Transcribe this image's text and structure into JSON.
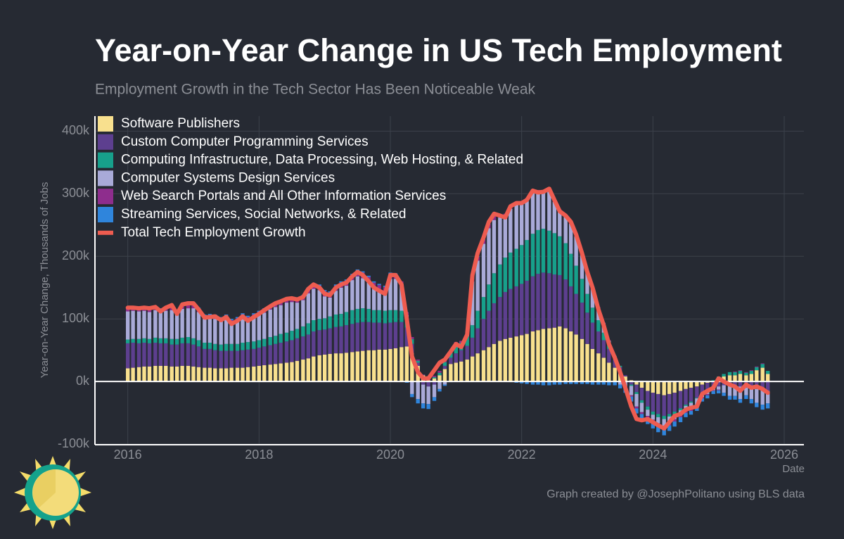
{
  "chart_data": {
    "type": "bar",
    "stacked": true,
    "title": "Year-on-Year Change in US Tech Employment",
    "subtitle": "Employment Growth in the Tech Sector Has Been Noticeable Weak",
    "y_label": "Year-on-Year Change, Thousands of Jobs",
    "x_label": "Date",
    "credit": "Graph created by @JosephPolitano using BLS data",
    "legend": "top-left",
    "grid": true,
    "xlim": [
      2015.5,
      2026.3
    ],
    "xticks": [
      2016,
      2018,
      2020,
      2022,
      2024,
      2026
    ],
    "ylim": [
      -101,
      424
    ],
    "yticks": [
      {
        "value": -100,
        "label": "-100k"
      },
      {
        "value": 0,
        "label": "0k"
      },
      {
        "value": 100,
        "label": "100k"
      },
      {
        "value": 200,
        "label": "200k"
      },
      {
        "value": 300,
        "label": "300k"
      },
      {
        "value": 400,
        "label": "400k"
      }
    ],
    "x": [
      2016,
      2016.08,
      2016.17,
      2016.25,
      2016.33,
      2016.42,
      2016.5,
      2016.58,
      2016.67,
      2016.75,
      2016.83,
      2016.92,
      2017,
      2017.08,
      2017.17,
      2017.25,
      2017.33,
      2017.42,
      2017.5,
      2017.58,
      2017.67,
      2017.75,
      2017.83,
      2017.92,
      2018,
      2018.08,
      2018.17,
      2018.25,
      2018.33,
      2018.42,
      2018.5,
      2018.58,
      2018.67,
      2018.75,
      2018.83,
      2018.92,
      2019,
      2019.08,
      2019.17,
      2019.25,
      2019.33,
      2019.42,
      2019.5,
      2019.58,
      2019.67,
      2019.75,
      2019.83,
      2019.92,
      2020,
      2020.08,
      2020.17,
      2020.25,
      2020.33,
      2020.42,
      2020.5,
      2020.58,
      2020.67,
      2020.75,
      2020.83,
      2020.92,
      2021,
      2021.08,
      2021.17,
      2021.25,
      2021.33,
      2021.42,
      2021.5,
      2021.58,
      2021.67,
      2021.75,
      2021.83,
      2021.92,
      2022,
      2022.08,
      2022.17,
      2022.25,
      2022.33,
      2022.42,
      2022.5,
      2022.58,
      2022.67,
      2022.75,
      2022.83,
      2022.92,
      2023,
      2023.08,
      2023.17,
      2023.25,
      2023.33,
      2023.42,
      2023.5,
      2023.58,
      2023.67,
      2023.75,
      2023.83,
      2023.92,
      2024,
      2024.08,
      2024.17,
      2024.25,
      2024.33,
      2024.42,
      2024.5,
      2024.58,
      2024.67,
      2024.75,
      2024.83,
      2024.92,
      2025,
      2025.08,
      2025.17,
      2025.25,
      2025.33,
      2025.42,
      2025.5,
      2025.58,
      2025.67,
      2025.75
    ],
    "series": [
      {
        "name": "Software Publishers",
        "type": "bar",
        "color": "#f8e08e",
        "values": [
          21,
          22,
          23,
          24,
          24,
          25,
          25,
          25,
          24,
          24,
          25,
          25,
          24,
          23,
          22,
          22,
          21,
          21,
          21,
          22,
          22,
          22,
          23,
          24,
          25,
          26,
          27,
          28,
          29,
          30,
          31,
          33,
          35,
          37,
          40,
          42,
          43,
          44,
          45,
          45,
          46,
          47,
          48,
          49,
          50,
          50,
          51,
          51,
          52,
          53,
          55,
          56,
          45,
          25,
          10,
          2,
          5,
          10,
          20,
          28,
          30,
          32,
          35,
          40,
          45,
          50,
          55,
          60,
          65,
          68,
          70,
          72,
          74,
          76,
          80,
          82,
          84,
          85,
          86,
          88,
          85,
          80,
          75,
          68,
          60,
          52,
          45,
          38,
          30,
          22,
          15,
          8,
          2,
          -5,
          -10,
          -15,
          -18,
          -20,
          -22,
          -20,
          -18,
          -15,
          -12,
          -10,
          -8,
          -5,
          -2,
          0,
          5,
          8,
          10,
          10,
          12,
          10,
          12,
          18,
          22,
          12
        ]
      },
      {
        "name": "Custom Computer Programming Services",
        "type": "bar",
        "color": "#5d3f8f",
        "values": [
          40,
          40,
          38,
          38,
          37,
          37,
          36,
          36,
          35,
          35,
          36,
          36,
          35,
          33,
          30,
          30,
          29,
          28,
          28,
          27,
          27,
          28,
          28,
          28,
          29,
          30,
          31,
          32,
          33,
          34,
          35,
          36,
          37,
          38,
          40,
          40,
          40,
          41,
          42,
          43,
          44,
          45,
          46,
          46,
          45,
          44,
          43,
          42,
          42,
          42,
          40,
          30,
          15,
          5,
          -5,
          -8,
          -5,
          0,
          5,
          10,
          15,
          18,
          22,
          30,
          40,
          50,
          58,
          65,
          70,
          75,
          78,
          80,
          82,
          85,
          88,
          90,
          90,
          88,
          85,
          82,
          78,
          72,
          65,
          58,
          50,
          42,
          35,
          28,
          22,
          15,
          8,
          2,
          -5,
          -12,
          -20,
          -25,
          -30,
          -32,
          -33,
          -32,
          -30,
          -28,
          -25,
          -22,
          -18,
          -15,
          -12,
          -10,
          -8,
          -6,
          -5,
          -6,
          -8,
          -10,
          -10,
          -12,
          -12,
          -15
        ]
      },
      {
        "name": "Computing Infrastructure, Data Processing, Web Hosting, & Related",
        "type": "bar",
        "color": "#17a08b",
        "values": [
          6,
          6,
          7,
          7,
          7,
          8,
          8,
          8,
          9,
          9,
          9,
          10,
          10,
          10,
          10,
          10,
          10,
          10,
          11,
          11,
          11,
          12,
          12,
          12,
          12,
          12,
          13,
          13,
          14,
          14,
          15,
          15,
          16,
          18,
          18,
          18,
          18,
          19,
          20,
          20,
          21,
          22,
          22,
          22,
          21,
          20,
          20,
          20,
          20,
          19,
          18,
          15,
          8,
          3,
          0,
          0,
          2,
          4,
          6,
          8,
          10,
          12,
          15,
          20,
          28,
          35,
          42,
          48,
          52,
          55,
          58,
          60,
          62,
          65,
          68,
          70,
          70,
          68,
          66,
          62,
          58,
          52,
          45,
          38,
          30,
          24,
          18,
          12,
          8,
          4,
          2,
          0,
          -2,
          -3,
          -4,
          -5,
          -5,
          -5,
          -5,
          -4,
          -4,
          -3,
          -2,
          -2,
          -1,
          0,
          1,
          2,
          3,
          4,
          5,
          5,
          5,
          4,
          5,
          5,
          6,
          5
        ]
      },
      {
        "name": "Computer Systems Design Services",
        "type": "bar",
        "color": "#a9aad8",
        "values": [
          45,
          45,
          44,
          44,
          43,
          44,
          42,
          44,
          46,
          40,
          46,
          46,
          48,
          45,
          38,
          39,
          40,
          37,
          40,
          33,
          36,
          40,
          35,
          38,
          40,
          42,
          44,
          46,
          46,
          48,
          46,
          42,
          42,
          48,
          50,
          46,
          35,
          30,
          38,
          42,
          42,
          48,
          52,
          48,
          42,
          36,
          32,
          30,
          50,
          50,
          40,
          5,
          -20,
          -28,
          -30,
          -28,
          -20,
          -12,
          -5,
          0,
          5,
          0,
          5,
          70,
          80,
          85,
          90,
          85,
          75,
          65,
          70,
          70,
          65,
          62,
          65,
          60,
          58,
          62,
          50,
          40,
          42,
          48,
          47,
          40,
          35,
          32,
          20,
          15,
          5,
          0,
          -5,
          -10,
          -15,
          -20,
          -15,
          -10,
          -8,
          -10,
          -12,
          -10,
          -8,
          -8,
          -8,
          -10,
          -12,
          -5,
          -6,
          -4,
          -5,
          -12,
          -18,
          -17,
          -20,
          -12,
          -18,
          -22,
          -25,
          -20
        ]
      },
      {
        "name": "Web Search Portals and All Other Information Services",
        "type": "bar",
        "color": "#8e2d8d",
        "values": [
          4,
          4,
          4,
          4,
          4,
          4,
          4,
          4,
          5,
          5,
          5,
          5,
          5,
          5,
          5,
          5,
          5,
          5,
          5,
          5,
          5,
          5,
          5,
          5,
          5,
          5,
          5,
          5,
          5,
          6,
          6,
          6,
          6,
          7,
          7,
          7,
          8,
          8,
          8,
          8,
          8,
          8,
          9,
          9,
          9,
          8,
          8,
          8,
          8,
          8,
          7,
          5,
          3,
          2,
          1,
          1,
          2,
          3,
          3,
          3,
          3,
          3,
          4,
          5,
          6,
          6,
          6,
          6,
          5,
          5,
          5,
          5,
          5,
          5,
          5,
          4,
          4,
          4,
          3,
          3,
          3,
          3,
          2,
          2,
          2,
          2,
          1,
          1,
          1,
          0,
          0,
          -1,
          -2,
          -3,
          -3,
          -3,
          -4,
          -4,
          -4,
          -4,
          -4,
          -3,
          -3,
          -3,
          -2,
          -2,
          -2,
          -1,
          -1,
          0,
          0,
          1,
          1,
          1,
          1,
          1,
          1,
          0
        ]
      },
      {
        "name": "Streaming Services, Social Networks, & Related",
        "type": "bar",
        "color": "#2f85dc",
        "values": [
          2,
          2,
          2,
          2,
          2,
          2,
          2,
          2,
          2,
          2,
          2,
          2,
          2,
          2,
          2,
          2,
          2,
          2,
          2,
          2,
          2,
          2,
          2,
          2,
          2,
          2,
          2,
          2,
          2,
          2,
          2,
          2,
          2,
          2,
          2,
          2,
          2,
          2,
          2,
          2,
          2,
          2,
          2,
          2,
          2,
          2,
          2,
          2,
          2,
          1,
          0,
          -2,
          -5,
          -7,
          -8,
          -8,
          -6,
          -4,
          -2,
          -1,
          0,
          0,
          0,
          1,
          1,
          1,
          1,
          1,
          0,
          0,
          -1,
          -2,
          -3,
          -4,
          -5,
          -5,
          -6,
          -6,
          -5,
          -5,
          -4,
          -4,
          -4,
          -4,
          -4,
          -5,
          -5,
          -5,
          -6,
          -6,
          -6,
          -7,
          -8,
          -8,
          -9,
          -10,
          -10,
          -10,
          -10,
          -9,
          -8,
          -8,
          -7,
          -6,
          -6,
          -5,
          -5,
          -5,
          -5,
          -5,
          -6,
          -6,
          -6,
          -6,
          -7,
          -7,
          -8,
          -8
        ]
      },
      {
        "name": "Total Tech Employment Growth",
        "type": "line",
        "color": "#ee5c50",
        "values": [
          118,
          118,
          117,
          118,
          117,
          119,
          112,
          118,
          122,
          108,
          123,
          125,
          125,
          115,
          102,
          103,
          104,
          98,
          103,
          92,
          97,
          104,
          97,
          103,
          108,
          114,
          120,
          125,
          128,
          132,
          133,
          131,
          135,
          148,
          155,
          150,
          140,
          138,
          150,
          155,
          158,
          168,
          175,
          170,
          160,
          150,
          145,
          140,
          170,
          170,
          155,
          100,
          40,
          15,
          5,
          5,
          18,
          30,
          35,
          48,
          60,
          55,
          75,
          170,
          205,
          230,
          255,
          268,
          265,
          262,
          280,
          285,
          285,
          290,
          305,
          302,
          303,
          308,
          290,
          272,
          265,
          255,
          235,
          205,
          175,
          150,
          115,
          90,
          60,
          38,
          15,
          -10,
          -40,
          -60,
          -62,
          -60,
          -65,
          -70,
          -75,
          -65,
          -55,
          -52,
          -45,
          -42,
          -40,
          -20,
          -15,
          -10,
          5,
          0,
          -5,
          -8,
          -15,
          -5,
          -10,
          -8,
          -12,
          -18
        ]
      }
    ]
  }
}
